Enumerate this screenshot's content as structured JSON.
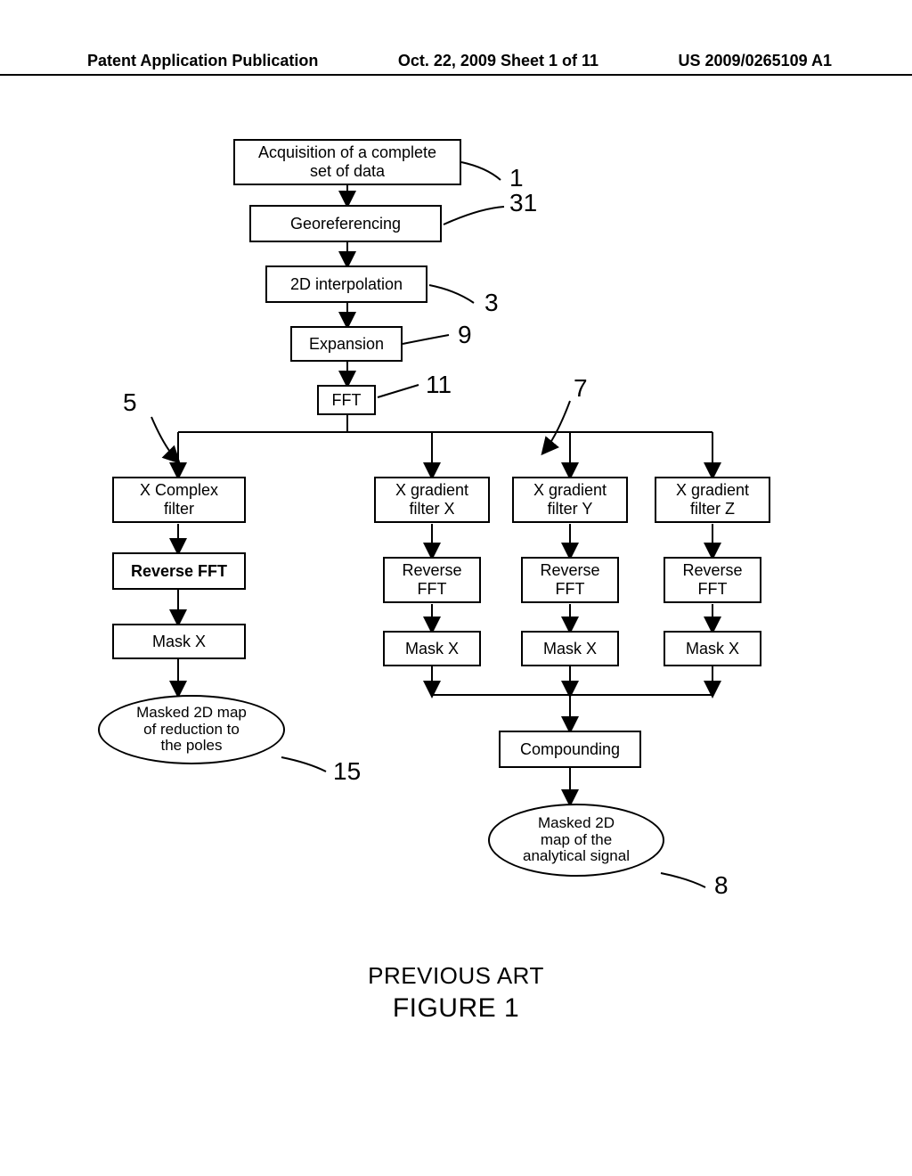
{
  "header": {
    "left": "Patent Application Publication",
    "center": "Oct. 22, 2009  Sheet 1 of 11",
    "right": "US 2009/0265109 A1"
  },
  "nodes": {
    "n1": {
      "text": "Acquisition of a complete\nset of data"
    },
    "n31": {
      "text": "Georeferencing"
    },
    "n3": {
      "text": "2D interpolation"
    },
    "n9": {
      "text": "Expansion"
    },
    "n11": {
      "text": "FFT"
    },
    "f5": {
      "text": "X Complex\nfilter"
    },
    "f7a": {
      "text": "X gradient\nfilter X"
    },
    "f7b": {
      "text": "X gradient\nfilter Y"
    },
    "f7c": {
      "text": "X gradient\nfilter Z"
    },
    "r5": {
      "text": "Reverse FFT"
    },
    "r7a": {
      "text": "Reverse\nFFT"
    },
    "r7b": {
      "text": "Reverse\nFFT"
    },
    "r7c": {
      "text": "Reverse\nFFT"
    },
    "m5": {
      "text": "Mask X"
    },
    "m7a": {
      "text": "Mask X"
    },
    "m7b": {
      "text": "Mask X"
    },
    "m7c": {
      "text": "Mask X"
    },
    "comp": {
      "text": "Compounding"
    },
    "e15": {
      "text": "Masked 2D map\nof reduction to\nthe poles"
    },
    "e8": {
      "text": "Masked 2D\nmap of the\nanalytical signal"
    }
  },
  "labels": {
    "l1": "1",
    "l31": "31",
    "l3": "3",
    "l9": "9",
    "l5": "5",
    "l7": "7",
    "l11": "11",
    "l15": "15",
    "l8": "8"
  },
  "footer": {
    "line1": "PREVIOUS ART",
    "line2": "FIGURE 1"
  },
  "style": {
    "stroke": "#000000",
    "stroke_width": 2,
    "font": "Arial",
    "bg": "#ffffff"
  }
}
